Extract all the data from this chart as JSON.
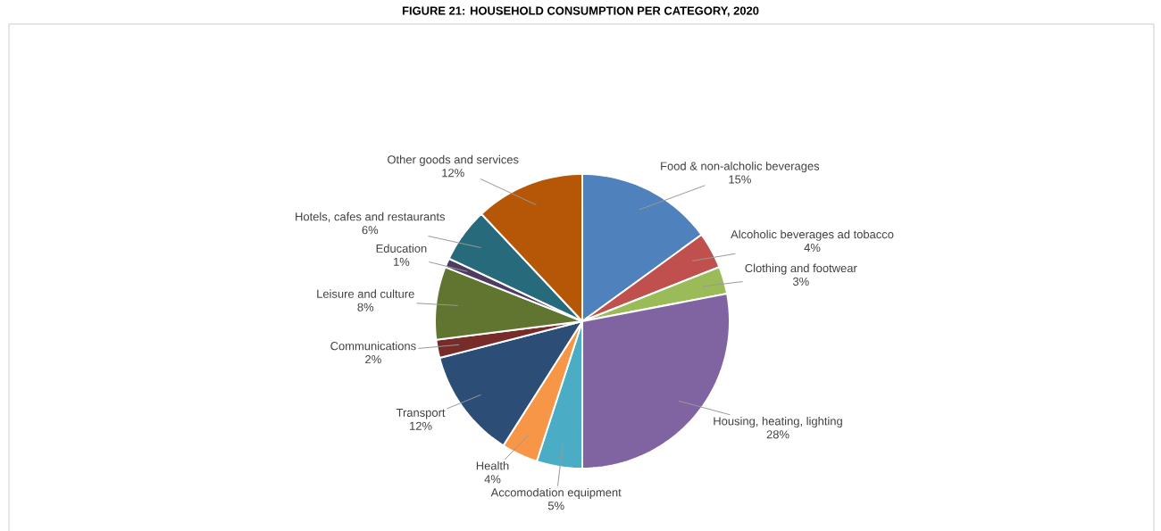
{
  "chart_data": {
    "type": "pie",
    "title": "FIGURE 21: HOUSEHOLD CONSUMPTION PER CATEGORY, 2020",
    "categories": [
      "Food & non-alcholic beverages",
      "Alcoholic beverages ad tobacco",
      "Clothing and footwear",
      "Housing, heating, lighting",
      "Accomodation equipment",
      "Health",
      "Transport",
      "Communications",
      "Leisure and culture",
      "Education",
      "Hotels, cafes and restaurants",
      "Other goods and services"
    ],
    "values": [
      15,
      4,
      3,
      28,
      5,
      4,
      12,
      2,
      8,
      1,
      6,
      12
    ],
    "value_labels": [
      "15%",
      "4%",
      "3%",
      "28%",
      "5%",
      "4%",
      "12%",
      "2%",
      "8%",
      "1%",
      "6%",
      "12%"
    ],
    "colors": [
      "#4f81bd",
      "#c0504d",
      "#9bbb59",
      "#8064a2",
      "#4bacc6",
      "#f79646",
      "#2c4d75",
      "#772c2a",
      "#5f7530",
      "#4d3b62",
      "#276a7c",
      "#b65708"
    ]
  }
}
